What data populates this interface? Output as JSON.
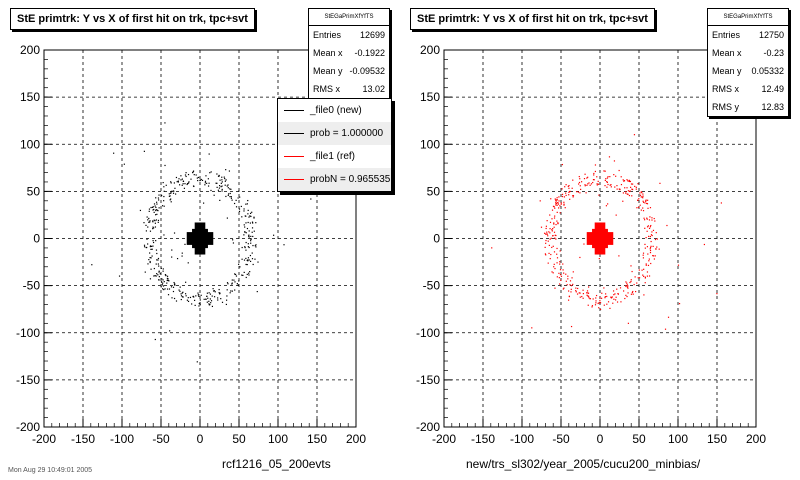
{
  "chart_data": [
    {
      "type": "scatter",
      "title": "StE primtrk: Y vs X of first hit on trk, tpc+svt",
      "xlim": [
        -200,
        200
      ],
      "ylim": [
        -200,
        200
      ],
      "xticks": [
        -200,
        -150,
        -100,
        -50,
        0,
        50,
        100,
        150,
        200
      ],
      "yticks": [
        -200,
        -150,
        -100,
        -50,
        0,
        50,
        100,
        150,
        200
      ],
      "grid": true,
      "marker_color": "#000000",
      "xlabel": "rcf1216_05_200evts",
      "stats": {
        "name": "StEGaPrimXfYfTS",
        "rows": [
          {
            "label": "Entries",
            "value": "12699"
          },
          {
            "label": "Mean x",
            "value": "-0.1922"
          },
          {
            "label": "Mean y",
            "value": "-0.09532"
          },
          {
            "label": "RMS x",
            "value": "13.02"
          }
        ]
      },
      "legend": {
        "placement": "top-right",
        "entries": [
          {
            "label": "_file0 (new)",
            "color": "#000000"
          },
          {
            "label": "prob = 1.000000",
            "color": "#000000"
          },
          {
            "label": "_file1 (ref)",
            "color": "#ff0000"
          },
          {
            "label": "probN = 0.965535",
            "color": "#ff0000"
          }
        ]
      },
      "core": {
        "center": [
          0,
          0
        ],
        "halfwidth": 17
      },
      "ring": {
        "radius": 65,
        "width": 8
      }
    },
    {
      "type": "scatter",
      "title": "StE primtrk: Y vs X of first hit on trk, tpc+svt",
      "xlim": [
        -200,
        200
      ],
      "ylim": [
        -200,
        200
      ],
      "xticks": [
        -200,
        -150,
        -100,
        -50,
        0,
        50,
        100,
        150,
        200
      ],
      "yticks": [
        -200,
        -150,
        -100,
        -50,
        0,
        50,
        100,
        150,
        200
      ],
      "grid": true,
      "marker_color": "#ff0000",
      "xlabel": "new/trs_sl302/year_2005/cucu200_minbias/",
      "stats": {
        "name": "StEGaPrimXfYfTS",
        "rows": [
          {
            "label": "Entries",
            "value": "12750"
          },
          {
            "label": "Mean x",
            "value": "-0.23"
          },
          {
            "label": "Mean y",
            "value": "0.05332"
          },
          {
            "label": "RMS x",
            "value": "12.49"
          },
          {
            "label": "RMS y",
            "value": "12.83"
          }
        ]
      },
      "core": {
        "center": [
          0,
          0
        ],
        "halfwidth": 17
      },
      "ring": {
        "radius": 65,
        "width": 8
      }
    }
  ],
  "footer_stamp": "Mon Aug 29 10:49:01 2005"
}
